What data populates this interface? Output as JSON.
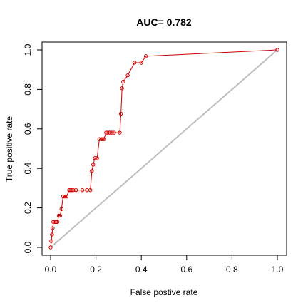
{
  "chart_data": {
    "type": "line",
    "title": "AUC= 0.782",
    "xlabel": "False postive rate",
    "ylabel": "True positive rate",
    "xlim": [
      0,
      1
    ],
    "ylim": [
      0,
      1
    ],
    "x_ticks": [
      0.0,
      0.2,
      0.4,
      0.6,
      0.8,
      1.0
    ],
    "y_ticks": [
      0.0,
      0.2,
      0.4,
      0.6,
      0.8,
      1.0
    ],
    "x_tick_labels": [
      "0.0",
      "0.2",
      "0.4",
      "0.6",
      "0.8",
      "1.0"
    ],
    "y_tick_labels": [
      "0.0",
      "0.2",
      "0.4",
      "0.6",
      "0.8",
      "1.0"
    ],
    "grid": false,
    "legend": "none",
    "series": [
      {
        "color": "#cc0000",
        "marker": "open-circle",
        "x": [
          0.0,
          0.003,
          0.006,
          0.009,
          0.012,
          0.018,
          0.024,
          0.03,
          0.036,
          0.042,
          0.048,
          0.055,
          0.062,
          0.07,
          0.082,
          0.088,
          0.094,
          0.1,
          0.112,
          0.14,
          0.16,
          0.175,
          0.182,
          0.188,
          0.195,
          0.205,
          0.215,
          0.225,
          0.23,
          0.235,
          0.245,
          0.25,
          0.258,
          0.262,
          0.27,
          0.28,
          0.305,
          0.31,
          0.315,
          0.32,
          0.34,
          0.37,
          0.4,
          0.42,
          1.0
        ],
        "y": [
          0.0,
          0.032,
          0.065,
          0.097,
          0.129,
          0.129,
          0.129,
          0.129,
          0.161,
          0.161,
          0.194,
          0.258,
          0.258,
          0.258,
          0.29,
          0.29,
          0.29,
          0.29,
          0.29,
          0.29,
          0.29,
          0.29,
          0.387,
          0.419,
          0.452,
          0.452,
          0.548,
          0.548,
          0.548,
          0.548,
          0.581,
          0.581,
          0.581,
          0.581,
          0.581,
          0.581,
          0.581,
          0.677,
          0.806,
          0.839,
          0.871,
          0.935,
          0.935,
          0.968,
          1.0
        ]
      }
    ],
    "reference_line": {
      "x": [
        0,
        1
      ],
      "y": [
        0,
        1
      ],
      "color": "#bebebe"
    }
  }
}
